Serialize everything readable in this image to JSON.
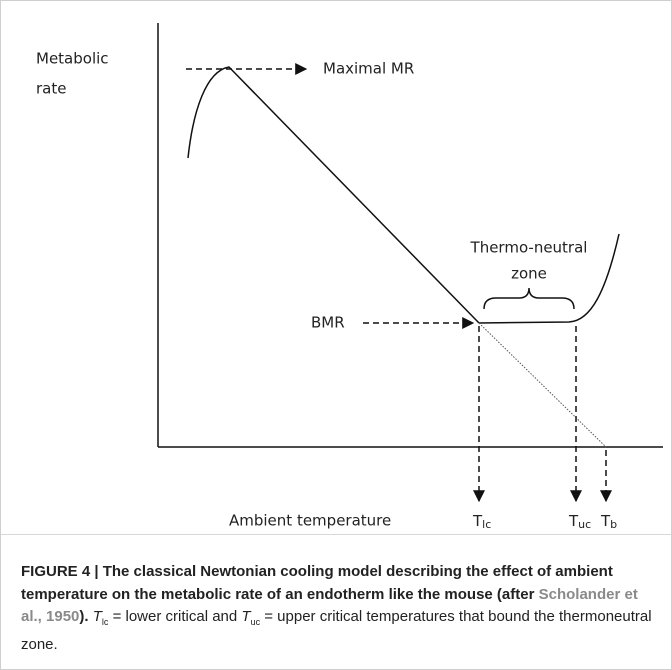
{
  "diagram": {
    "y_axis_label": [
      "Metabolic",
      "rate"
    ],
    "x_axis_label": "Ambient temperature",
    "maximal": "Maximal MR",
    "bmr": "BMR",
    "zone": [
      "Thermo-neutral",
      "zone"
    ],
    "temps": [
      {
        "symbol": "T",
        "sub": "lc"
      },
      {
        "symbol": "T",
        "sub": "uc"
      },
      {
        "symbol": "T",
        "sub": "b"
      }
    ]
  },
  "caption": {
    "label": "FIGURE 4 |",
    "title": "The classical Newtonian cooling model describing the effect of ambient temperature on the metabolic rate of an endotherm like the mouse (after",
    "reference": "Scholander et al., 1950",
    "title_end": ").",
    "parts": [
      {
        "symbol": "T",
        "sub": "lc",
        "text": "= lower critical and"
      },
      {
        "symbol": "T",
        "sub": "uc",
        "text": "= upper critical temperatures that bound the thermoneutral zone."
      }
    ]
  }
}
